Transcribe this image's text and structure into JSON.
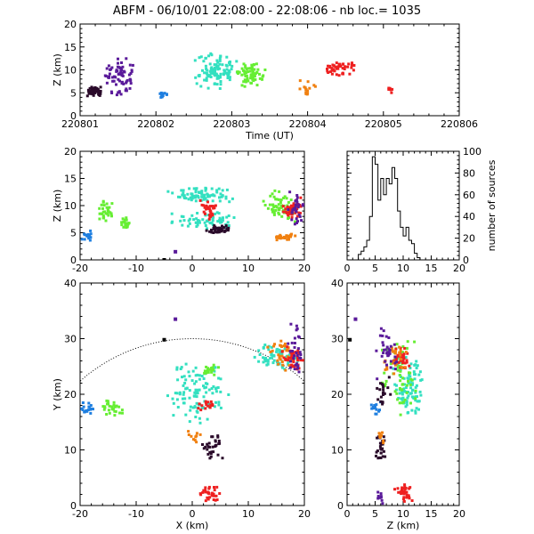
{
  "title": "ABFM - 06/10/01 22:08:00 - 22:08:06 - nb loc.=   1035",
  "chart_data": [
    {
      "id": "time_height",
      "type": "scatter",
      "xlabel": "Time (UT)",
      "ylabel": "Z (km)",
      "xlim": [
        0,
        6
      ],
      "ylim": [
        0,
        20
      ],
      "xtick_labels": [
        "220801",
        "220802",
        "220803",
        "220804",
        "220805",
        "220806"
      ],
      "ytick_labels": [
        "0",
        "5",
        "10",
        "15",
        "20"
      ],
      "clusters": [
        {
          "color": "#2a0a2a",
          "x": [
            0.08,
            0.4
          ],
          "y": [
            4,
            6.5
          ],
          "n": 45
        },
        {
          "color": "#5a1a9a",
          "x": [
            0.35,
            0.9
          ],
          "y": [
            4,
            13
          ],
          "n": 70
        },
        {
          "color": "#1f7fe0",
          "x": [
            1.25,
            1.4
          ],
          "y": [
            3.5,
            5.5
          ],
          "n": 12
        },
        {
          "color": "#33e0c0",
          "x": [
            1.8,
            2.5
          ],
          "y": [
            5.5,
            14
          ],
          "n": 110
        },
        {
          "color": "#66ee33",
          "x": [
            2.45,
            2.95
          ],
          "y": [
            6,
            12
          ],
          "n": 70
        },
        {
          "color": "#f08010",
          "x": [
            3.45,
            3.75
          ],
          "y": [
            4.5,
            8
          ],
          "n": 15
        },
        {
          "color": "#ee2020",
          "x": [
            3.75,
            4.4
          ],
          "y": [
            8.5,
            12
          ],
          "n": 45
        },
        {
          "color": "#ee2020",
          "x": [
            4.85,
            5.0
          ],
          "y": [
            5,
            6.5
          ],
          "n": 6
        }
      ]
    },
    {
      "id": "x_height",
      "type": "scatter",
      "xlabel": "",
      "ylabel": "Z (km)",
      "xlim": [
        -20,
        20
      ],
      "ylim": [
        0,
        20
      ],
      "xtick_labels": [
        "-20",
        "-10",
        "0",
        "10",
        "20"
      ],
      "ytick_labels": [
        "0",
        "5",
        "10",
        "15",
        "20"
      ],
      "clusters": [
        {
          "color": "#1f7fe0",
          "x": [
            -20,
            -17
          ],
          "y": [
            3.5,
            5.5
          ],
          "n": 18
        },
        {
          "color": "#66ee33",
          "x": [
            -17,
            -14
          ],
          "y": [
            7,
            11
          ],
          "n": 30
        },
        {
          "color": "#66ee33",
          "x": [
            -13,
            -11
          ],
          "y": [
            5.5,
            8
          ],
          "n": 18
        },
        {
          "color": "#33e0c0",
          "x": [
            -5,
            8
          ],
          "y": [
            10.5,
            13.5
          ],
          "n": 80
        },
        {
          "color": "#33e0c0",
          "x": [
            -4,
            8
          ],
          "y": [
            5.5,
            9
          ],
          "n": 60
        },
        {
          "color": "#ee2020",
          "x": [
            1,
            5
          ],
          "y": [
            7,
            11
          ],
          "n": 30
        },
        {
          "color": "#2a0a2a",
          "x": [
            2,
            7
          ],
          "y": [
            4.5,
            6.5
          ],
          "n": 35
        },
        {
          "color": "#66ee33",
          "x": [
            12,
            19
          ],
          "y": [
            6,
            13
          ],
          "n": 60
        },
        {
          "color": "#ee2020",
          "x": [
            16,
            20
          ],
          "y": [
            7,
            12
          ],
          "n": 35
        },
        {
          "color": "#5a1a9a",
          "x": [
            17,
            20
          ],
          "y": [
            6,
            13
          ],
          "n": 30
        },
        {
          "color": "#f08010",
          "x": [
            14,
            19
          ],
          "y": [
            3.5,
            5
          ],
          "n": 25
        }
      ],
      "singles": [
        {
          "color": "#000000",
          "x": -5,
          "y": 0
        },
        {
          "color": "#5a1a9a",
          "x": -3,
          "y": 1.5
        }
      ]
    },
    {
      "id": "altitude_histogram",
      "type": "line",
      "xlabel": "",
      "ylabel": "number of sources",
      "xlim": [
        0,
        20
      ],
      "ylim": [
        0,
        100
      ],
      "xtick_labels": [
        "0",
        "5",
        "10",
        "15",
        "20"
      ],
      "ytick_labels": [
        "0",
        "20",
        "40",
        "60",
        "80",
        "100"
      ],
      "step": true,
      "x": [
        2,
        2.5,
        3,
        3.5,
        4,
        4.5,
        5,
        5.5,
        6,
        6.5,
        7,
        7.5,
        8,
        8.5,
        9,
        9.5,
        10,
        10.5,
        11,
        11.5,
        12,
        12.5,
        13
      ],
      "y": [
        5,
        8,
        12,
        18,
        40,
        95,
        88,
        55,
        75,
        60,
        75,
        70,
        85,
        75,
        45,
        30,
        22,
        30,
        18,
        15,
        6,
        2,
        0
      ]
    },
    {
      "id": "plan_view",
      "type": "scatter",
      "xlabel": "X (km)",
      "ylabel": "Y (km)",
      "xlim": [
        -20,
        20
      ],
      "ylim": [
        0,
        40
      ],
      "xtick_labels": [
        "-20",
        "-10",
        "0",
        "10",
        "20"
      ],
      "ytick_labels": [
        "0",
        "10",
        "20",
        "30",
        "40"
      ],
      "range_arc": {
        "center": [
          0,
          0
        ],
        "radius": 30
      },
      "clusters": [
        {
          "color": "#1f7fe0",
          "x": [
            -20,
            -17.5
          ],
          "y": [
            16,
            19
          ],
          "n": 18
        },
        {
          "color": "#66ee33",
          "x": [
            -16.5,
            -12
          ],
          "y": [
            16,
            19
          ],
          "n": 30
        },
        {
          "color": "#33e0c0",
          "x": [
            -5,
            7
          ],
          "y": [
            14,
            26
          ],
          "n": 110
        },
        {
          "color": "#66ee33",
          "x": [
            2,
            5
          ],
          "y": [
            23,
            26
          ],
          "n": 20
        },
        {
          "color": "#ee2020",
          "x": [
            1,
            4
          ],
          "y": [
            17,
            19
          ],
          "n": 15
        },
        {
          "color": "#2a0a2a",
          "x": [
            1,
            6
          ],
          "y": [
            8,
            13
          ],
          "n": 30
        },
        {
          "color": "#f08010",
          "x": [
            -1,
            2
          ],
          "y": [
            11,
            14
          ],
          "n": 10
        },
        {
          "color": "#ee2020",
          "x": [
            1,
            5
          ],
          "y": [
            0.5,
            4
          ],
          "n": 30
        },
        {
          "color": "#33e0c0",
          "x": [
            11,
            19
          ],
          "y": [
            24,
            30
          ],
          "n": 60
        },
        {
          "color": "#f08010",
          "x": [
            13,
            19
          ],
          "y": [
            24,
            30
          ],
          "n": 35
        },
        {
          "color": "#ee2020",
          "x": [
            16,
            20
          ],
          "y": [
            24,
            29
          ],
          "n": 35
        },
        {
          "color": "#5a1a9a",
          "x": [
            17,
            20
          ],
          "y": [
            22,
            33
          ],
          "n": 30
        }
      ],
      "singles": [
        {
          "color": "#000000",
          "x": -5,
          "y": 29.8
        },
        {
          "color": "#5a1a9a",
          "x": -3,
          "y": 33.5
        }
      ]
    },
    {
      "id": "z_plan",
      "type": "scatter",
      "xlabel": "Z (km)",
      "ylabel": "",
      "xlim": [
        0,
        20
      ],
      "ylim": [
        0,
        40
      ],
      "xtick_labels": [
        "0",
        "5",
        "10",
        "15",
        "20"
      ],
      "ytick_labels": [
        "0",
        "10",
        "20",
        "30",
        "40"
      ],
      "clusters": [
        {
          "color": "#33e0c0",
          "x": [
            8,
            14
          ],
          "y": [
            15,
            28
          ],
          "n": 90
        },
        {
          "color": "#66ee33",
          "x": [
            6,
            13
          ],
          "y": [
            16,
            31
          ],
          "n": 60
        },
        {
          "color": "#ee2020",
          "x": [
            8,
            12
          ],
          "y": [
            24,
            29
          ],
          "n": 30
        },
        {
          "color": "#f08010",
          "x": [
            6,
            11
          ],
          "y": [
            23,
            30
          ],
          "n": 25
        },
        {
          "color": "#5a1a9a",
          "x": [
            5,
            9
          ],
          "y": [
            21,
            33
          ],
          "n": 35
        },
        {
          "color": "#1f7fe0",
          "x": [
            4,
            6
          ],
          "y": [
            16,
            19
          ],
          "n": 15
        },
        {
          "color": "#2a0a2a",
          "x": [
            5,
            7
          ],
          "y": [
            8,
            13
          ],
          "n": 25
        },
        {
          "color": "#2a0a2a",
          "x": [
            5,
            8
          ],
          "y": [
            17,
            24
          ],
          "n": 20
        },
        {
          "color": "#f08010",
          "x": [
            5,
            7
          ],
          "y": [
            11,
            15
          ],
          "n": 8
        },
        {
          "color": "#ee2020",
          "x": [
            8,
            12
          ],
          "y": [
            0.5,
            4
          ],
          "n": 30
        },
        {
          "color": "#5a1a9a",
          "x": [
            5,
            7
          ],
          "y": [
            0,
            3
          ],
          "n": 10
        }
      ],
      "singles": [
        {
          "color": "#000000",
          "x": 0.5,
          "y": 29.8
        },
        {
          "color": "#5a1a9a",
          "x": 1.5,
          "y": 33.5
        }
      ]
    }
  ]
}
